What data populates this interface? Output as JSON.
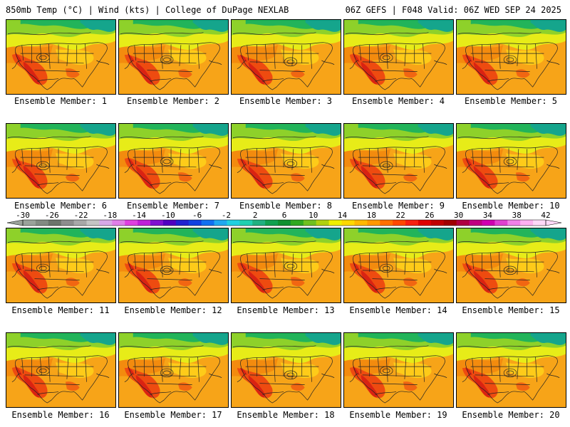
{
  "header": {
    "left": "850mb Temp (°C) | Wind (kts) | College of DuPage NEXLAB",
    "right": "06Z GEFS | F048 Valid: 06Z WED SEP 24 2025"
  },
  "members": [
    {
      "label": "Ensemble Member: 1"
    },
    {
      "label": "Ensemble Member: 2"
    },
    {
      "label": "Ensemble Member: 3"
    },
    {
      "label": "Ensemble Member: 4"
    },
    {
      "label": "Ensemble Member: 5"
    },
    {
      "label": "Ensemble Member: 6"
    },
    {
      "label": "Ensemble Member: 7"
    },
    {
      "label": "Ensemble Member: 8"
    },
    {
      "label": "Ensemble Member: 9"
    },
    {
      "label": "Ensemble Member: 10"
    },
    {
      "label": "Ensemble Member: 11"
    },
    {
      "label": "Ensemble Member: 12"
    },
    {
      "label": "Ensemble Member: 13"
    },
    {
      "label": "Ensemble Member: 14"
    },
    {
      "label": "Ensemble Member: 15"
    },
    {
      "label": "Ensemble Member: 16"
    },
    {
      "label": "Ensemble Member: 17"
    },
    {
      "label": "Ensemble Member: 18"
    },
    {
      "label": "Ensemble Member: 19"
    },
    {
      "label": "Ensemble Member: 20"
    }
  ],
  "colorbar": {
    "ticks": [
      "-30",
      "-26",
      "-22",
      "-18",
      "-14",
      "-10",
      "-6",
      "-2",
      "2",
      "6",
      "10",
      "14",
      "18",
      "22",
      "26",
      "30",
      "34",
      "38",
      "42"
    ],
    "colors": [
      "#9aa29a",
      "#828a82",
      "#6c746c",
      "#8d8d8d",
      "#a8a8a8",
      "#c4c4c4",
      "#d8a8e8",
      "#e07ee8",
      "#e040e0",
      "#c020d8",
      "#8010d0",
      "#5000c0",
      "#2020d0",
      "#1040e0",
      "#1070f0",
      "#20a8f0",
      "#20d0e0",
      "#20d0b0",
      "#20b080",
      "#10a050",
      "#109030",
      "#30a820",
      "#70c020",
      "#b0d010",
      "#f0f000",
      "#ffd800",
      "#ffb800",
      "#ff9800",
      "#ff7000",
      "#ff4800",
      "#f82010",
      "#e00000",
      "#c00000",
      "#a00000",
      "#b00040",
      "#c00080",
      "#d000b0",
      "#e040d0",
      "#f080e8",
      "#ffb0f0",
      "#ffd8f8"
    ]
  },
  "map_colors": {
    "ocean": "#f7a418",
    "land_warm": "#f2880d",
    "hot": "#ee4b10",
    "very_hot": "#d92312",
    "cool": "#ffd21a",
    "cooler": "#e7ec18",
    "cold": "#8ed12a",
    "colder": "#22b45a",
    "arctic": "#15a58c"
  }
}
